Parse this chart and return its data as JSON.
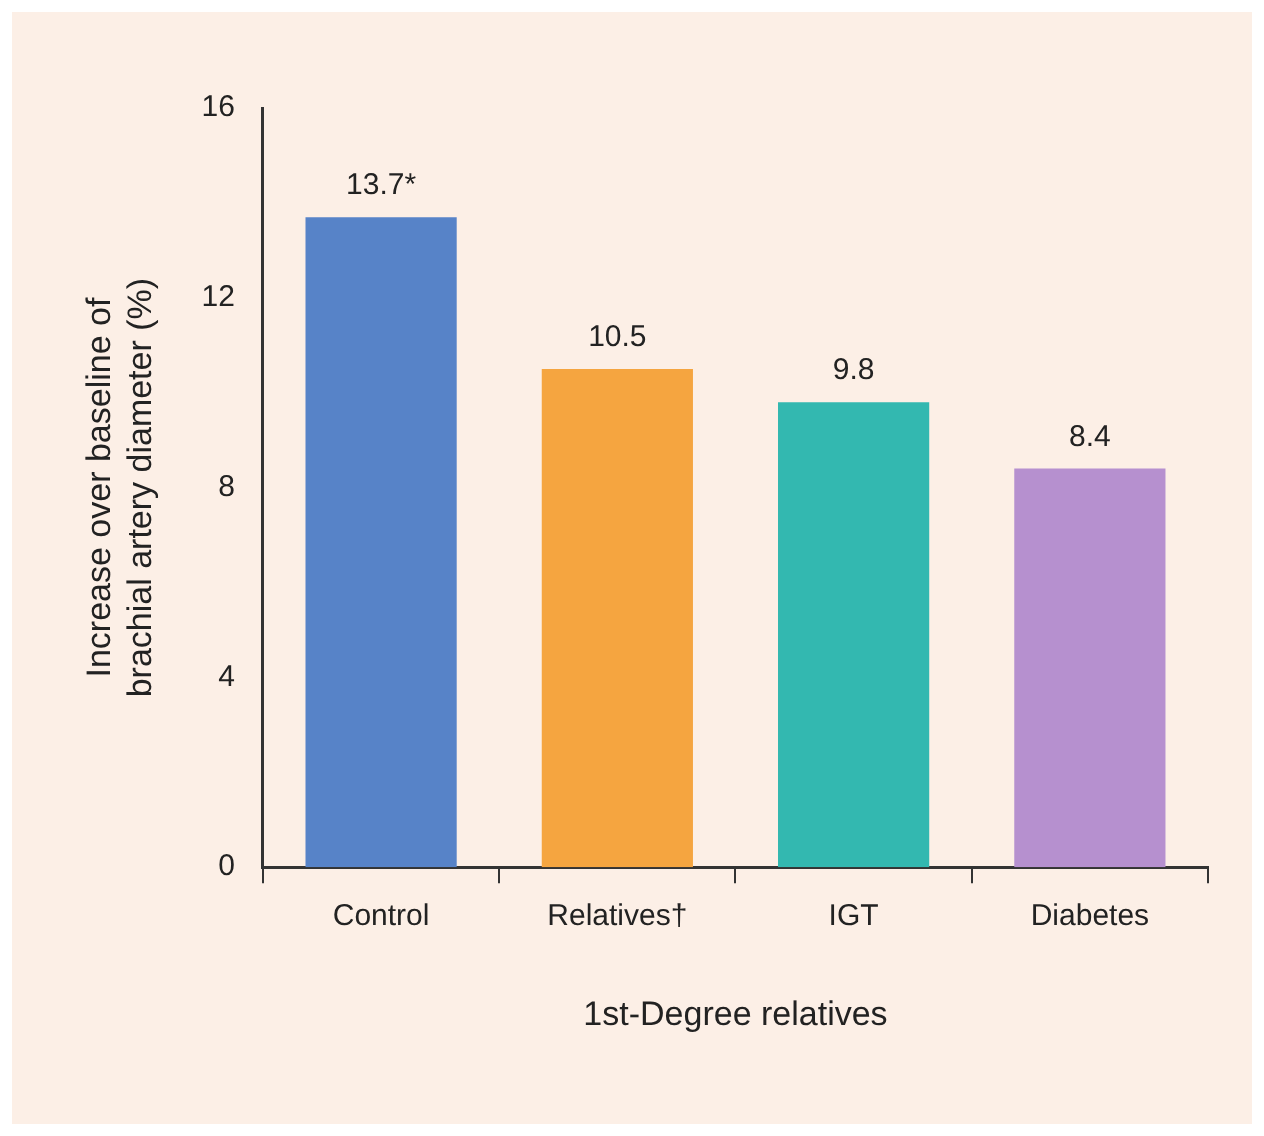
{
  "chart_data": {
    "type": "bar",
    "categories": [
      "Control",
      "Relatives†",
      "IGT",
      "Diabetes"
    ],
    "values": [
      13.7,
      10.5,
      9.8,
      8.4
    ],
    "value_labels": [
      "13.7*",
      "10.5",
      "9.8",
      "8.4"
    ],
    "colors": [
      "#5783c8",
      "#f5a540",
      "#33b8b0",
      "#b690cf"
    ],
    "xlabel": "1st-Degree relatives",
    "ylabel": "Increase over baseline of brachial artery diameter (%)",
    "ylim": [
      0,
      16
    ],
    "yticks": [
      0,
      4,
      8,
      12,
      16
    ],
    "grid": false,
    "legend": false
  }
}
